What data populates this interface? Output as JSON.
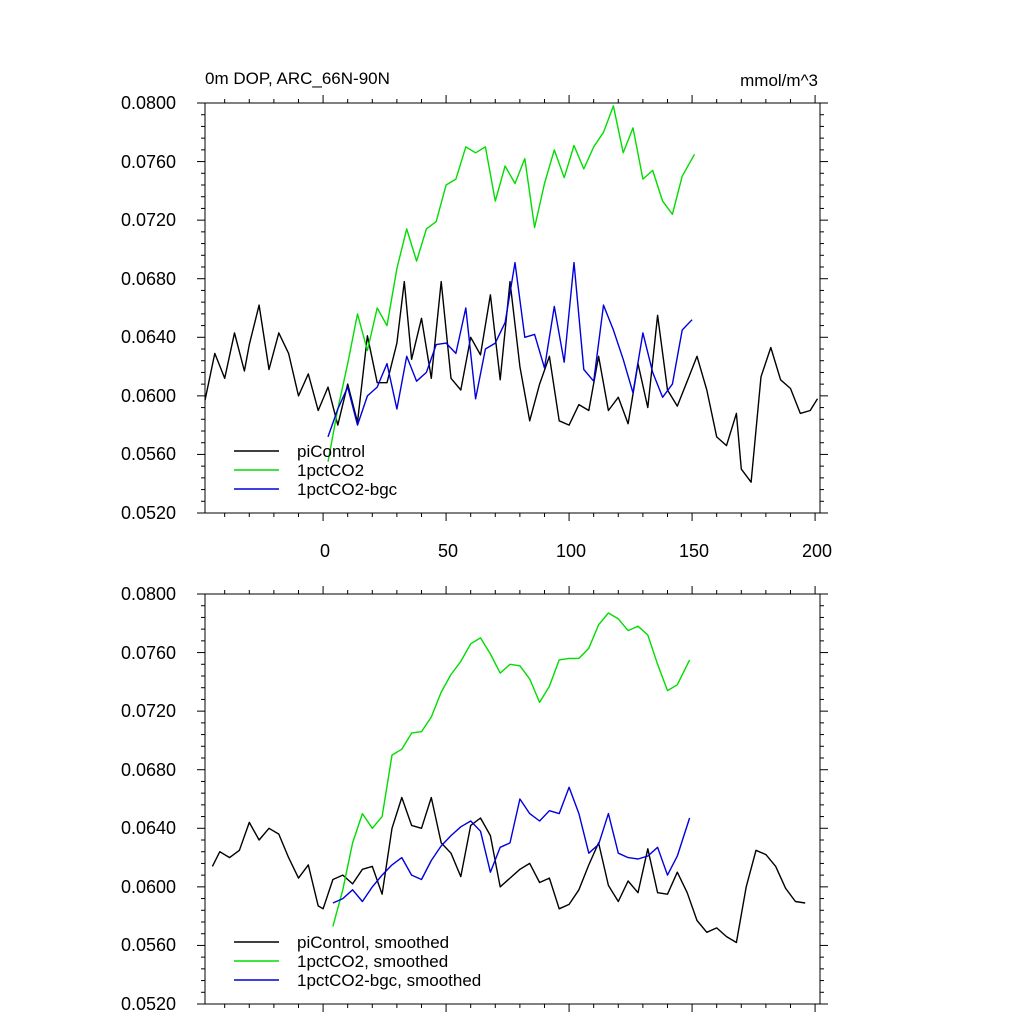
{
  "chart_data": [
    {
      "type": "line",
      "title": "0m DOP, ARC_66N-90N",
      "units": "mmol/m^3",
      "xlim": [
        -48,
        202
      ],
      "ylim": [
        0.052,
        0.08
      ],
      "xticks": [
        0,
        50,
        100,
        150,
        200
      ],
      "xtick_labels": [
        "0",
        "50",
        "100",
        "150",
        "200"
      ],
      "yticks": [
        0.052,
        0.056,
        0.06,
        0.064,
        0.068,
        0.072,
        0.076,
        0.08
      ],
      "ytick_labels": [
        "0.0520",
        "0.0560",
        "0.0600",
        "0.0640",
        "0.0680",
        "0.0720",
        "0.0760",
        "0.0800"
      ],
      "legend": [
        "piControl",
        "1pctCO2",
        "1pctCO2-bgc"
      ],
      "legend_position": "bottom-left",
      "series": [
        {
          "name": "piControl",
          "color": "#000000",
          "x": [
            -48,
            -44,
            -40,
            -36,
            -32,
            -30,
            -26,
            -22,
            -18,
            -14,
            -10,
            -6,
            -2,
            2,
            6,
            10,
            14,
            18,
            22,
            26,
            30,
            33,
            36,
            40,
            44,
            48,
            52,
            56,
            60,
            64,
            68,
            72,
            76,
            80,
            84,
            88,
            92,
            96,
            100,
            104,
            108,
            112,
            116,
            120,
            124,
            128,
            132,
            136,
            140,
            144,
            148,
            152,
            156,
            160,
            164,
            168,
            170,
            174,
            178,
            182,
            186,
            190,
            194,
            198,
            201
          ],
          "y": [
            0.0597,
            0.0629,
            0.0612,
            0.0643,
            0.0617,
            0.0635,
            0.0662,
            0.0618,
            0.0643,
            0.0629,
            0.06,
            0.0615,
            0.059,
            0.0606,
            0.058,
            0.0608,
            0.0582,
            0.0641,
            0.0609,
            0.0609,
            0.0636,
            0.0678,
            0.0625,
            0.0653,
            0.0612,
            0.0678,
            0.0612,
            0.0604,
            0.064,
            0.0628,
            0.0669,
            0.0611,
            0.0678,
            0.062,
            0.0583,
            0.0608,
            0.0627,
            0.0583,
            0.058,
            0.0594,
            0.059,
            0.0627,
            0.059,
            0.0599,
            0.0581,
            0.0622,
            0.0592,
            0.0655,
            0.0604,
            0.0593,
            0.061,
            0.0627,
            0.0604,
            0.0572,
            0.0566,
            0.0588,
            0.055,
            0.0541,
            0.0613,
            0.0633,
            0.0611,
            0.0605,
            0.0588,
            0.059,
            0.0598
          ]
        },
        {
          "name": "1pctCO2",
          "color": "#00dd00",
          "x": [
            2,
            6,
            10,
            14,
            18,
            22,
            26,
            30,
            34,
            38,
            42,
            46,
            50,
            54,
            58,
            62,
            66,
            70,
            74,
            78,
            82,
            86,
            90,
            94,
            98,
            102,
            106,
            110,
            114,
            118,
            122,
            126,
            130,
            134,
            138,
            142,
            146,
            151
          ],
          "y": [
            0.0555,
            0.0591,
            0.0622,
            0.0656,
            0.0631,
            0.066,
            0.0648,
            0.0687,
            0.0714,
            0.0692,
            0.0714,
            0.0719,
            0.0744,
            0.0748,
            0.077,
            0.0766,
            0.077,
            0.0733,
            0.0757,
            0.0745,
            0.0762,
            0.0715,
            0.0745,
            0.0768,
            0.0749,
            0.0771,
            0.0755,
            0.077,
            0.078,
            0.0798,
            0.0766,
            0.0783,
            0.0748,
            0.0754,
            0.0733,
            0.0724,
            0.075,
            0.0765
          ]
        },
        {
          "name": "1pctCO2-bgc",
          "color": "#0000dd",
          "x": [
            2,
            6,
            10,
            14,
            18,
            22,
            26,
            30,
            34,
            38,
            42,
            46,
            50,
            54,
            58,
            62,
            66,
            70,
            74,
            78,
            82,
            86,
            90,
            94,
            98,
            102,
            106,
            110,
            114,
            118,
            122,
            126,
            130,
            134,
            138,
            142,
            146,
            150
          ],
          "y": [
            0.0572,
            0.0591,
            0.0606,
            0.058,
            0.06,
            0.0606,
            0.0622,
            0.0591,
            0.0627,
            0.061,
            0.0616,
            0.0635,
            0.0636,
            0.0629,
            0.066,
            0.0598,
            0.0632,
            0.0636,
            0.065,
            0.0691,
            0.064,
            0.0642,
            0.0619,
            0.0661,
            0.0623,
            0.0691,
            0.0618,
            0.061,
            0.0662,
            0.0645,
            0.0625,
            0.0602,
            0.0643,
            0.0616,
            0.0599,
            0.0608,
            0.0645,
            0.0652
          ]
        }
      ]
    },
    {
      "type": "line",
      "title": "",
      "xlim": [
        -48,
        202
      ],
      "ylim": [
        0.052,
        0.08
      ],
      "xticks": [
        0,
        50,
        100,
        150,
        200
      ],
      "yticks": [
        0.052,
        0.056,
        0.06,
        0.064,
        0.068,
        0.072,
        0.076,
        0.08
      ],
      "ytick_labels": [
        "0.0520",
        "0.0560",
        "0.0600",
        "0.0640",
        "0.0680",
        "0.0720",
        "0.0760",
        "0.0800"
      ],
      "legend": [
        "piControl, smoothed",
        "1pctCO2, smoothed",
        "1pctCO2-bgc, smoothed"
      ],
      "legend_position": "bottom-left",
      "series": [
        {
          "name": "piControl, smoothed",
          "color": "#000000",
          "x": [
            -45,
            -42,
            -38,
            -34,
            -30,
            -26,
            -22,
            -18,
            -14,
            -10,
            -6,
            -2,
            0,
            4,
            8,
            12,
            16,
            20,
            24,
            28,
            32,
            36,
            40,
            44,
            48,
            52,
            56,
            60,
            64,
            68,
            72,
            76,
            80,
            84,
            88,
            92,
            96,
            100,
            104,
            108,
            112,
            116,
            120,
            124,
            128,
            132,
            136,
            140,
            144,
            148,
            152,
            156,
            160,
            164,
            168,
            172,
            176,
            180,
            184,
            188,
            192,
            196
          ],
          "y": [
            0.0614,
            0.0624,
            0.062,
            0.0625,
            0.0644,
            0.0632,
            0.064,
            0.0636,
            0.062,
            0.0606,
            0.0615,
            0.0587,
            0.0585,
            0.0605,
            0.0608,
            0.0602,
            0.0612,
            0.0614,
            0.0595,
            0.064,
            0.0661,
            0.0642,
            0.064,
            0.0661,
            0.063,
            0.0623,
            0.0607,
            0.0642,
            0.0647,
            0.0635,
            0.06,
            0.0606,
            0.0612,
            0.0616,
            0.0603,
            0.0606,
            0.0585,
            0.0588,
            0.0598,
            0.0615,
            0.063,
            0.0601,
            0.059,
            0.0604,
            0.0596,
            0.0626,
            0.0596,
            0.0595,
            0.061,
            0.0596,
            0.0577,
            0.0569,
            0.0572,
            0.0566,
            0.0562,
            0.06,
            0.0625,
            0.0622,
            0.0614,
            0.0599,
            0.059,
            0.0589
          ]
        },
        {
          "name": "1pctCO2, smoothed",
          "color": "#00dd00",
          "x": [
            4,
            8,
            12,
            16,
            20,
            24,
            28,
            32,
            36,
            40,
            44,
            48,
            52,
            56,
            60,
            64,
            68,
            72,
            76,
            80,
            84,
            88,
            92,
            96,
            100,
            104,
            108,
            112,
            116,
            120,
            124,
            128,
            132,
            136,
            140,
            144,
            149
          ],
          "y": [
            0.0573,
            0.0598,
            0.063,
            0.065,
            0.064,
            0.0648,
            0.069,
            0.0694,
            0.0705,
            0.0706,
            0.0716,
            0.0733,
            0.0745,
            0.0754,
            0.0766,
            0.077,
            0.0759,
            0.0746,
            0.0752,
            0.0751,
            0.0742,
            0.0726,
            0.0737,
            0.0755,
            0.0756,
            0.0756,
            0.0763,
            0.0779,
            0.0787,
            0.0783,
            0.0775,
            0.0778,
            0.0772,
            0.0752,
            0.0734,
            0.0738,
            0.0755
          ]
        },
        {
          "name": "1pctCO2-bgc, smoothed",
          "color": "#0000dd",
          "x": [
            4,
            8,
            12,
            16,
            20,
            24,
            28,
            32,
            36,
            40,
            44,
            48,
            52,
            56,
            60,
            64,
            68,
            72,
            76,
            80,
            84,
            88,
            92,
            96,
            100,
            104,
            108,
            112,
            116,
            120,
            124,
            128,
            132,
            136,
            140,
            144,
            149
          ],
          "y": [
            0.0589,
            0.0592,
            0.0598,
            0.059,
            0.06,
            0.0608,
            0.0615,
            0.062,
            0.0608,
            0.0605,
            0.0618,
            0.0628,
            0.0635,
            0.0641,
            0.0645,
            0.0638,
            0.061,
            0.0627,
            0.063,
            0.066,
            0.065,
            0.0645,
            0.0652,
            0.065,
            0.0668,
            0.065,
            0.0623,
            0.0629,
            0.065,
            0.0623,
            0.062,
            0.0619,
            0.0621,
            0.0627,
            0.0608,
            0.0621,
            0.0647
          ]
        }
      ]
    }
  ]
}
